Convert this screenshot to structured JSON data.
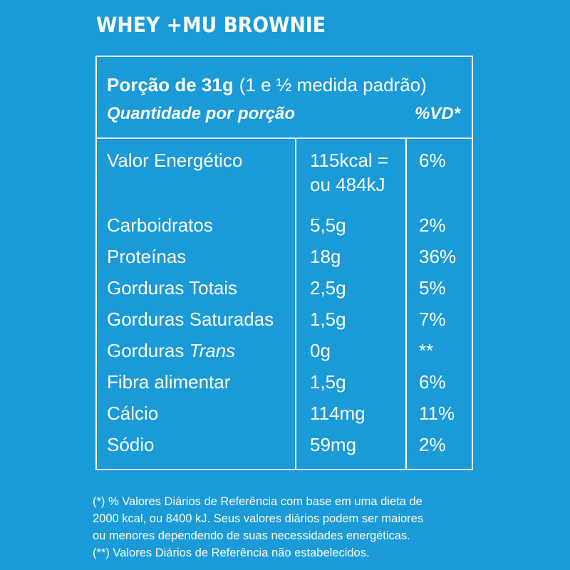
{
  "title": "WHEY +MU BROWNIE",
  "header": {
    "portion_label": "Porção de 31g",
    "portion_detail": "(1 e ½ medida padrão)",
    "quantity_label": "Quantidade por porção",
    "vd_label": "%VD*"
  },
  "rows": [
    {
      "name": "Valor Energético",
      "amount_line1": "115kcal =",
      "amount_line2": "ou 484kJ",
      "pct": "6%"
    },
    {
      "name": "Carboidratos",
      "amount": "5,5g",
      "pct": "2%"
    },
    {
      "name": "Proteínas",
      "amount": "18g",
      "pct": "36%"
    },
    {
      "name": "Gorduras Totais",
      "amount": "2,5g",
      "pct": "5%"
    },
    {
      "name": "Gorduras Saturadas",
      "amount": "1,5g",
      "pct": "7%"
    },
    {
      "name_prefix": "Gorduras",
      "name_italic": "Trans",
      "amount": "0g",
      "pct": "**"
    },
    {
      "name": "Fibra alimentar",
      "amount": "1,5g",
      "pct": "6%"
    },
    {
      "name": "Cálcio",
      "amount": "114mg",
      "pct": "11%"
    },
    {
      "name": "Sódio",
      "amount": "59mg",
      "pct": "2%"
    }
  ],
  "footnote": {
    "line1": "(*) % Valores Diários de Referência com base em uma dieta de",
    "line2": "2000 kcal, ou 8400 kJ. Seus valores diários podem ser maiores",
    "line3": "ou menores dependendo de suas necessidades energéticas.",
    "line4": "(**) Valores Diários de Referência não estabelecidos."
  },
  "colors": {
    "background": "#1a9ad6",
    "foreground": "#ffffff"
  }
}
